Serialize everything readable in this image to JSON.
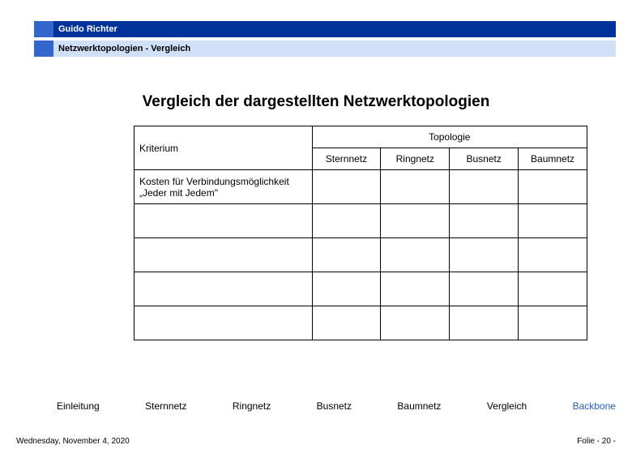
{
  "header": {
    "author": "Guido Richter",
    "subtitle": "Netzwerktopologien  - Vergleich"
  },
  "title": "Vergleich der dargestellten Netzwerktopologien",
  "table": {
    "criterion_label": "Kriterium",
    "topology_label": "Topologie",
    "columns": [
      "Sternnetz",
      "Ringnetz",
      "Busnetz",
      "Baumnetz"
    ],
    "rows": [
      {
        "criterion": "Kosten für Verbindungsmöglichkeit „Jeder mit Jedem\"",
        "values": [
          "",
          "",
          "",
          ""
        ]
      },
      {
        "criterion": "",
        "values": [
          "",
          "",
          "",
          ""
        ]
      },
      {
        "criterion": "",
        "values": [
          "",
          "",
          "",
          ""
        ]
      },
      {
        "criterion": "",
        "values": [
          "",
          "",
          "",
          ""
        ]
      },
      {
        "criterion": "",
        "values": [
          "",
          "",
          "",
          ""
        ]
      }
    ]
  },
  "nav": {
    "items": [
      "Einleitung",
      "Sternnetz",
      "Ringnetz",
      "Busnetz",
      "Baumnetz",
      "Vergleich",
      "Backbone"
    ]
  },
  "footer": {
    "date": "Wednesday, November 4, 2020",
    "page": "Folie - 20 -"
  },
  "colors": {
    "dark_blue": "#003399",
    "mid_blue": "#3366cc",
    "light_blue": "#cfe0f7",
    "link_blue": "#225fbf"
  }
}
